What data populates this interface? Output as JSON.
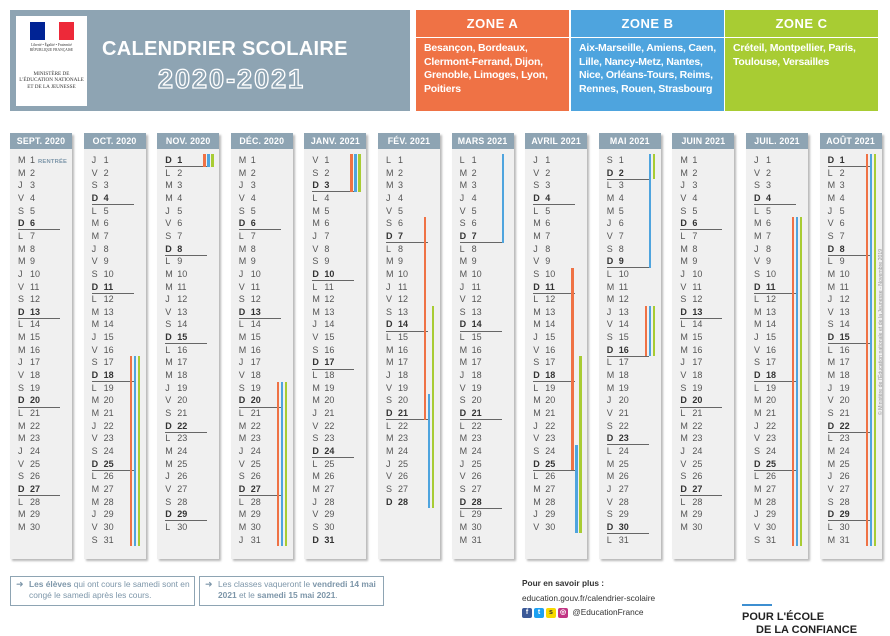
{
  "header": {
    "logo_top": "Liberté • Égalité • Fraternité",
    "logo_republic": "RÉPUBLIQUE FRANÇAISE",
    "logo_ministry": "MINISTÈRE DE L'ÉDUCATION NATIONALE ET DE LA JEUNESSE",
    "title": "CALENDRIER SCOLAIRE",
    "years": "2020-2021"
  },
  "colors": {
    "zone_a": "#ef7245",
    "zone_b": "#4ea4de",
    "zone_c": "#a8cc33",
    "header": "#8ea4b3"
  },
  "zones": [
    {
      "name": "ZONE A",
      "cities": "Besançon, Bordeaux, Clermont-Ferrand, Dijon, Grenoble, Limoges, Lyon, Poitiers"
    },
    {
      "name": "ZONE B",
      "cities": "Aix-Marseille, Amiens, Caen, Lille, Nancy-Metz, Nantes, Nice, Orléans-Tours, Reims, Rennes, Rouen, Strasbourg"
    },
    {
      "name": "ZONE C",
      "cities": "Créteil, Montpellier, Paris, Toulouse, Versailles"
    }
  ],
  "months": [
    {
      "name": "SEPT. 2020",
      "days": 30,
      "start": 1,
      "annotation": {
        "day": 1,
        "text": "RENTRÉE"
      }
    },
    {
      "name": "OCT. 2020",
      "days": 31,
      "start": 3
    },
    {
      "name": "NOV. 2020",
      "days": 30,
      "start": 6
    },
    {
      "name": "DÉC. 2020",
      "days": 31,
      "start": 1
    },
    {
      "name": "JANV. 2021",
      "days": 31,
      "start": 4
    },
    {
      "name": "FÉV. 2021",
      "days": 28,
      "start": 0
    },
    {
      "name": "MARS 2021",
      "days": 31,
      "start": 0
    },
    {
      "name": "AVRIL 2021",
      "days": 30,
      "start": 3
    },
    {
      "name": "MAI 2021",
      "days": 31,
      "start": 5
    },
    {
      "name": "JUIN 2021",
      "days": 30,
      "start": 1
    },
    {
      "name": "JUIL. 2021",
      "days": 31,
      "start": 3
    },
    {
      "name": "AOÛT 2021",
      "days": 31,
      "start": 6
    }
  ],
  "weekday_letters": [
    "L",
    "M",
    "M",
    "J",
    "V",
    "S",
    "D"
  ],
  "holidays": [
    {
      "zone": "A",
      "start": [
        1,
        17
      ],
      "end": [
        2,
        1
      ]
    },
    {
      "zone": "B",
      "start": [
        1,
        17
      ],
      "end": [
        2,
        1
      ]
    },
    {
      "zone": "C",
      "start": [
        1,
        17
      ],
      "end": [
        2,
        1
      ]
    },
    {
      "zone": "A",
      "start": [
        3,
        19
      ],
      "end": [
        4,
        3
      ]
    },
    {
      "zone": "B",
      "start": [
        3,
        19
      ],
      "end": [
        4,
        3
      ]
    },
    {
      "zone": "C",
      "start": [
        3,
        19
      ],
      "end": [
        4,
        3
      ]
    },
    {
      "zone": "A",
      "start": [
        5,
        6
      ],
      "end": [
        5,
        21
      ]
    },
    {
      "zone": "B",
      "start": [
        5,
        20
      ],
      "end": [
        6,
        7
      ]
    },
    {
      "zone": "C",
      "start": [
        5,
        13
      ],
      "end": [
        5,
        28
      ]
    },
    {
      "zone": "A",
      "start": [
        7,
        10
      ],
      "end": [
        7,
        25
      ]
    },
    {
      "zone": "B",
      "start": [
        7,
        24
      ],
      "end": [
        8,
        9
      ]
    },
    {
      "zone": "C",
      "start": [
        7,
        17
      ],
      "end": [
        8,
        2
      ]
    },
    {
      "zone": "A",
      "start": [
        8,
        13
      ],
      "end": [
        8,
        16
      ]
    },
    {
      "zone": "B",
      "start": [
        8,
        13
      ],
      "end": [
        8,
        16
      ]
    },
    {
      "zone": "C",
      "start": [
        8,
        13
      ],
      "end": [
        8,
        16
      ]
    },
    {
      "zone": "A",
      "start": [
        10,
        6
      ],
      "end": [
        11,
        31
      ]
    },
    {
      "zone": "B",
      "start": [
        10,
        6
      ],
      "end": [
        11,
        31
      ]
    },
    {
      "zone": "C",
      "start": [
        10,
        6
      ],
      "end": [
        11,
        31
      ]
    }
  ],
  "footer": {
    "box1_html": "<b>Les élèves</b> qui ont cours le samedi sont en congé le samedi après les cours.",
    "box2_html": "Les classes vaqueront le <b>vendredi 14 mai 2021</b> et le <b>samedi 15 mai 2021</b>.",
    "info_title": "Pour en savoir plus :",
    "info_url": "education.gouv.fr/calendrier-scolaire",
    "info_social": "@EducationFrance",
    "slogan_line1": "POUR L'ÉCOLE",
    "slogan_line2": "DE LA CONFIANCE",
    "copyright": "© Ministère de l'Éducation nationale et de la Jeunesse - Novembre 2019"
  }
}
